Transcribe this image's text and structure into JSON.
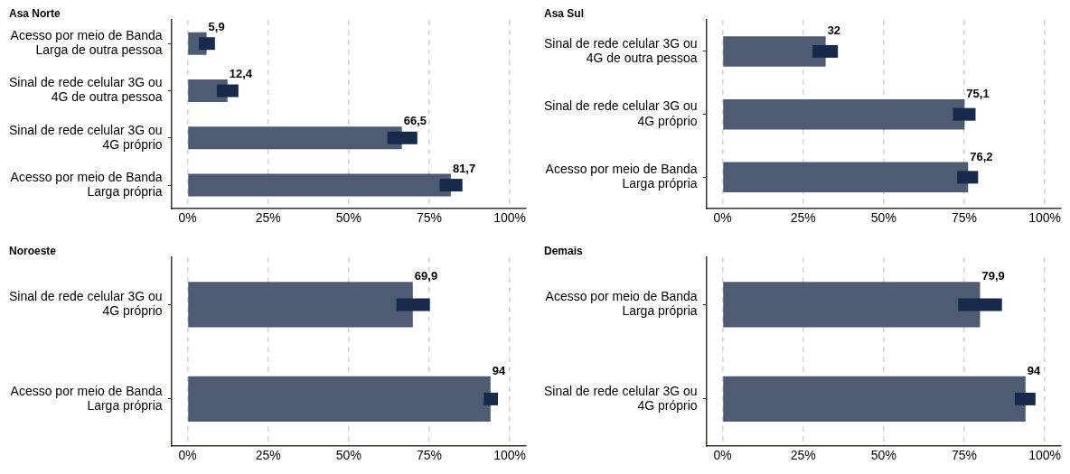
{
  "chart_data": [
    {
      "type": "bar",
      "orientation": "horizontal",
      "title": "Asa Norte",
      "categories": [
        "Acesso por meio de Banda Larga de outra pessoa",
        "Sinal de rede celular 3G ou 4G de outra pessoa",
        "Sinal de rede celular 3G ou 4G próprio",
        "Acesso por meio de Banda Larga própria"
      ],
      "values": [
        5.9,
        12.4,
        66.5,
        81.7
      ],
      "color": "#4d5b73",
      "errors": [
        [
          3.5,
          8.5
        ],
        [
          9.1,
          15.8
        ],
        [
          62.0,
          71.3
        ],
        [
          78.2,
          85.3
        ]
      ],
      "value_labels": [
        "5,9",
        "12,4",
        "66,5",
        "81,7"
      ],
      "xlim": [
        -5,
        105
      ],
      "xticks": [
        {
          "value": 0,
          "label": "0%"
        },
        {
          "value": 25,
          "label": "25%"
        },
        {
          "value": 50,
          "label": "50%"
        },
        {
          "value": 75,
          "label": "75%"
        },
        {
          "value": 100,
          "label": "100%"
        }
      ],
      "grid": "x",
      "legend": false
    },
    {
      "type": "bar",
      "orientation": "horizontal",
      "title": "Asa Sul",
      "categories": [
        "Sinal de rede celular 3G ou 4G de outra pessoa",
        "Sinal de rede celular 3G ou 4G próprio",
        "Acesso por meio de Banda Larga própria"
      ],
      "values": [
        32,
        75.1,
        76.2
      ],
      "color": "#4d5b73",
      "errors": [
        [
          27.9,
          35.8
        ],
        [
          71.5,
          78.5
        ],
        [
          72.8,
          79.3
        ]
      ],
      "value_labels": [
        "32",
        "75,1",
        "76,2"
      ],
      "xlim": [
        -5,
        105
      ],
      "xticks": [
        {
          "value": 0,
          "label": "0%"
        },
        {
          "value": 25,
          "label": "25%"
        },
        {
          "value": 50,
          "label": "50%"
        },
        {
          "value": 75,
          "label": "75%"
        },
        {
          "value": 100,
          "label": "100%"
        }
      ],
      "grid": "x",
      "legend": false
    },
    {
      "type": "bar",
      "orientation": "horizontal",
      "title": "Noroeste",
      "categories": [
        "Sinal de rede celular 3G ou 4G próprio",
        "Acesso por meio de Banda Larga própria"
      ],
      "values": [
        69.9,
        94
      ],
      "color": "#4d5b73",
      "errors": [
        [
          64.8,
          75.2
        ],
        [
          91.9,
          96.3
        ]
      ],
      "value_labels": [
        "69,9",
        "94"
      ],
      "xlim": [
        -5,
        105
      ],
      "xticks": [
        {
          "value": 0,
          "label": "0%"
        },
        {
          "value": 25,
          "label": "25%"
        },
        {
          "value": 50,
          "label": "50%"
        },
        {
          "value": 75,
          "label": "75%"
        },
        {
          "value": 100,
          "label": "100%"
        }
      ],
      "grid": "x",
      "legend": false
    },
    {
      "type": "bar",
      "orientation": "horizontal",
      "title": "Demais",
      "categories": [
        "Acesso por meio de Banda Larga própria",
        "Sinal de rede celular 3G ou 4G próprio"
      ],
      "values": [
        79.9,
        94
      ],
      "color": "#4d5b73",
      "errors": [
        [
          73.1,
          86.7
        ],
        [
          90.7,
          97.1
        ]
      ],
      "value_labels": [
        "79,9",
        "94"
      ],
      "xlim": [
        -5,
        105
      ],
      "xticks": [
        {
          "value": 0,
          "label": "0%"
        },
        {
          "value": 25,
          "label": "25%"
        },
        {
          "value": 50,
          "label": "50%"
        },
        {
          "value": 75,
          "label": "75%"
        },
        {
          "value": 100,
          "label": "100%"
        }
      ],
      "grid": "x",
      "legend": false
    }
  ]
}
